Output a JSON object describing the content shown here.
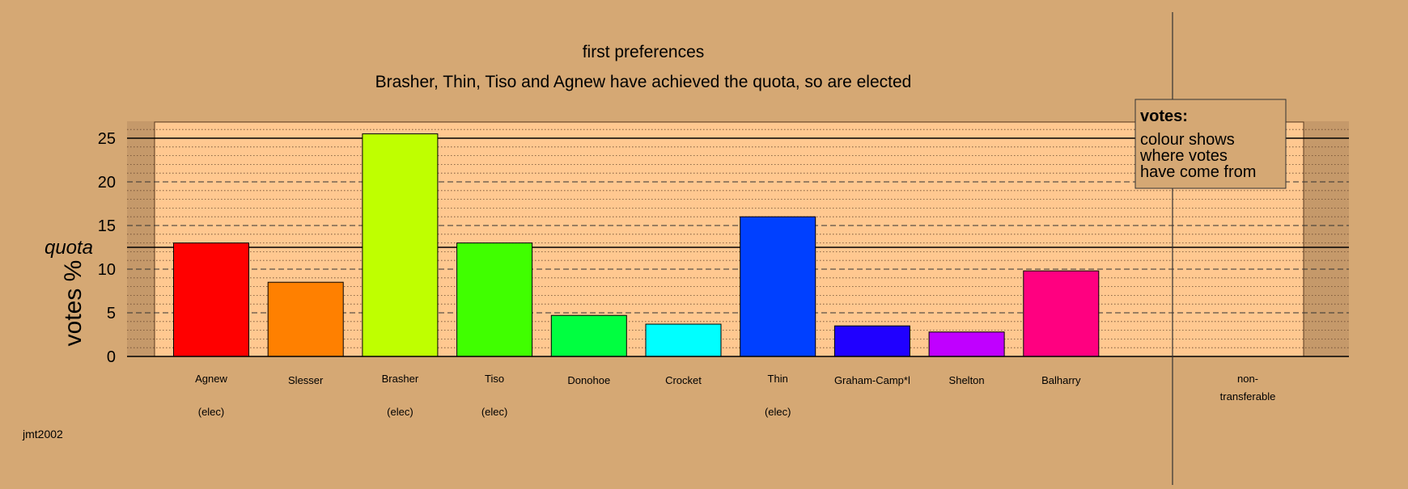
{
  "chart_data": {
    "type": "bar",
    "title": "first preferences",
    "subtitle": "Brasher, Thin, Tiso and Agnew have achieved the quota, so are elected",
    "ylabel": "votes %",
    "quota_label": "quota",
    "quota": 12.5,
    "ylim": [
      0,
      26
    ],
    "yticks": [
      0,
      5,
      10,
      15,
      20,
      25
    ],
    "categories": [
      "Agnew",
      "Slesser",
      "Brasher",
      "Tiso",
      "Donohoe",
      "Crocket",
      "Thin",
      "Graham-Camp*l",
      "Shelton",
      "Balharry"
    ],
    "values": [
      13.0,
      8.5,
      25.5,
      13.0,
      4.7,
      3.7,
      16.0,
      3.5,
      2.8,
      9.8
    ],
    "elected": [
      true,
      false,
      true,
      true,
      false,
      false,
      true,
      false,
      false,
      false
    ],
    "elected_label": "(elec)",
    "colors": [
      "#FF0000",
      "#FF8000",
      "#BFFF00",
      "#40FF00",
      "#00FF40",
      "#00FFFF",
      "#0040FF",
      "#2000FF",
      "#C000FF",
      "#FF0080"
    ],
    "nontransferable": {
      "label_line1": "non-",
      "label_line2": "transferable",
      "value": 0
    },
    "legend": {
      "title": "votes:",
      "lines": [
        "colour shows",
        "where votes",
        "have come from"
      ],
      "placement": "top-right"
    },
    "grid": true
  },
  "credit": "jmt2002"
}
